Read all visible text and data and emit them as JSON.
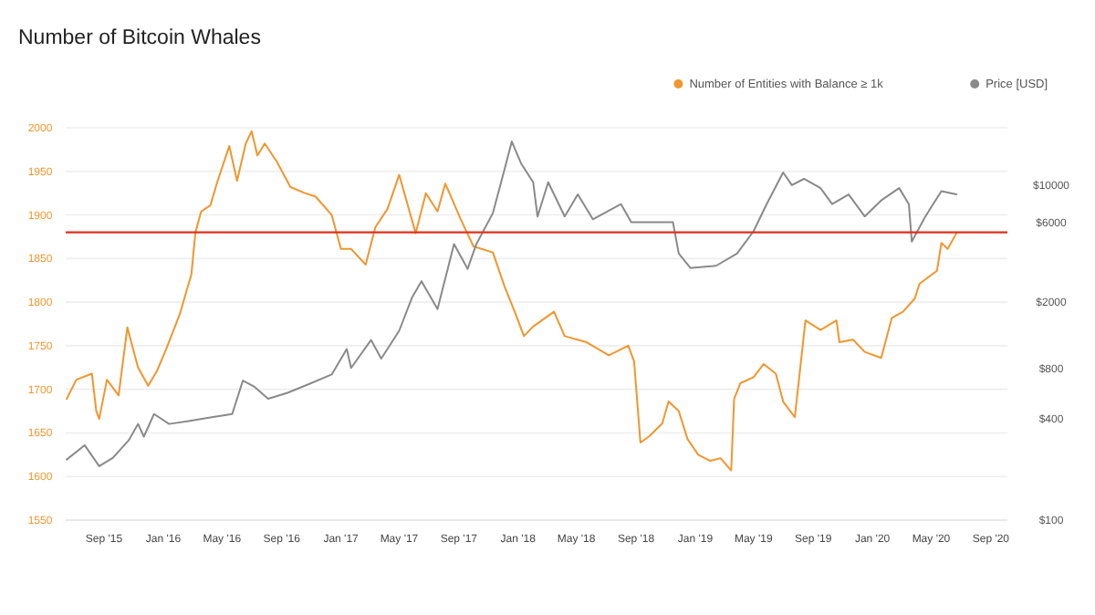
{
  "chart_data": {
    "type": "line",
    "title": "Number of Bitcoin Whales",
    "legend": "top right",
    "grid": "y",
    "log": "y2",
    "xlim": [
      "2015-06-14",
      "2020-10-05"
    ],
    "xticks": [
      {
        "value": "2015-09-01",
        "label": "Sep '15"
      },
      {
        "value": "2016-01-01",
        "label": "Jan '16"
      },
      {
        "value": "2016-05-01",
        "label": "May '16"
      },
      {
        "value": "2016-09-01",
        "label": "Sep '16"
      },
      {
        "value": "2017-01-01",
        "label": "Jan '17"
      },
      {
        "value": "2017-05-01",
        "label": "May '17"
      },
      {
        "value": "2017-09-01",
        "label": "Sep '17"
      },
      {
        "value": "2018-01-01",
        "label": "Jan '18"
      },
      {
        "value": "2018-05-01",
        "label": "May '18"
      },
      {
        "value": "2018-09-01",
        "label": "Sep '18"
      },
      {
        "value": "2019-01-01",
        "label": "Jan '19"
      },
      {
        "value": "2019-05-01",
        "label": "May '19"
      },
      {
        "value": "2019-09-01",
        "label": "Sep '19"
      },
      {
        "value": "2020-01-01",
        "label": "Jan '20"
      },
      {
        "value": "2020-05-01",
        "label": "May '20"
      },
      {
        "value": "2020-09-01",
        "label": "Sep '20"
      }
    ],
    "ylim": [
      1550,
      2000
    ],
    "yticks": [
      1550,
      1600,
      1650,
      1700,
      1750,
      1800,
      1850,
      1900,
      1950,
      2000
    ],
    "y2lim": [
      100,
      22000
    ],
    "y2ticks": [
      {
        "value": 100,
        "label": "$100"
      },
      {
        "value": 400,
        "label": "$400"
      },
      {
        "value": 800,
        "label": "$800"
      },
      {
        "value": 2000,
        "label": "$2000"
      },
      {
        "value": 6000,
        "label": "$6000"
      },
      {
        "value": 10000,
        "label": "$10000"
      }
    ],
    "ref_lines": [
      {
        "axis": "y",
        "value": 1880,
        "color": "#e0301e"
      }
    ],
    "series": [
      {
        "name": "Number of Entities with Balance ≥ 1k",
        "color": "#f0962e",
        "x": [
          "2015-06-16",
          "2015-07-06",
          "2015-08-07",
          "2015-08-16",
          "2015-08-22",
          "2015-09-07",
          "2015-10-01",
          "2015-10-19",
          "2015-11-10",
          "2015-12-01",
          "2015-12-19",
          "2016-01-07",
          "2016-02-04",
          "2016-02-28",
          "2016-03-07",
          "2016-03-19",
          "2016-04-07",
          "2016-04-22",
          "2016-05-16",
          "2016-06-01",
          "2016-06-19",
          "2016-07-01",
          "2016-07-13",
          "2016-07-28",
          "2016-08-22",
          "2016-09-19",
          "2016-10-19",
          "2016-11-10",
          "2016-12-13",
          "2017-01-01",
          "2017-01-22",
          "2017-02-21",
          "2017-03-13",
          "2017-04-07",
          "2017-05-01",
          "2017-06-04",
          "2017-06-25",
          "2017-07-19",
          "2017-08-04",
          "2017-09-04",
          "2017-10-01",
          "2017-11-10",
          "2017-12-04",
          "2017-12-25",
          "2018-01-13",
          "2018-02-01",
          "2018-03-16",
          "2018-04-07",
          "2018-05-22",
          "2018-07-07",
          "2018-08-16",
          "2018-08-28",
          "2018-09-10",
          "2018-09-28",
          "2018-10-25",
          "2018-11-07",
          "2018-11-28",
          "2018-12-16",
          "2019-01-07",
          "2019-02-01",
          "2019-02-22",
          "2019-03-16",
          "2019-03-22",
          "2019-04-04",
          "2019-05-01",
          "2019-05-22",
          "2019-06-16",
          "2019-07-01",
          "2019-07-25",
          "2019-08-04",
          "2019-08-16",
          "2019-09-16",
          "2019-10-19",
          "2019-10-25",
          "2019-11-22",
          "2019-12-16",
          "2020-01-19",
          "2020-02-10",
          "2020-03-04",
          "2020-03-28",
          "2020-04-07",
          "2020-05-13",
          "2020-05-22",
          "2020-06-04",
          "2020-06-22"
        ],
        "values": [
          1689,
          1711,
          1718,
          1675,
          1666,
          1711,
          1693,
          1771,
          1725,
          1704,
          1721,
          1746,
          1786,
          1832,
          1879,
          1904,
          1911,
          1939,
          1979,
          1939,
          1982,
          1996,
          1968,
          1982,
          1961,
          1932,
          1925,
          1921,
          1900,
          1861,
          1861,
          1843,
          1886,
          1907,
          1946,
          1879,
          1925,
          1904,
          1936,
          1896,
          1864,
          1857,
          1818,
          1789,
          1761,
          1772,
          1789,
          1761,
          1754,
          1739,
          1750,
          1732,
          1639,
          1646,
          1661,
          1686,
          1675,
          1643,
          1625,
          1618,
          1621,
          1607,
          1689,
          1707,
          1714,
          1729,
          1718,
          1686,
          1668,
          1718,
          1779,
          1768,
          1779,
          1754,
          1757,
          1743,
          1736,
          1782,
          1789,
          1804,
          1821,
          1836,
          1868,
          1861,
          1879
        ]
      },
      {
        "name": "Price [USD]",
        "color": "#8a8a8a",
        "axis": "y2",
        "x": [
          "2015-06-16",
          "2015-07-23",
          "2015-08-22",
          "2015-09-19",
          "2015-10-22",
          "2015-11-10",
          "2015-11-22",
          "2015-12-13",
          "2016-01-13",
          "2016-02-22",
          "2016-04-07",
          "2016-05-22",
          "2016-06-13",
          "2016-07-07",
          "2016-08-04",
          "2016-09-13",
          "2016-10-28",
          "2016-12-13",
          "2017-01-13",
          "2017-01-22",
          "2017-03-04",
          "2017-03-25",
          "2017-05-01",
          "2017-05-28",
          "2017-06-16",
          "2017-07-19",
          "2017-08-22",
          "2017-09-19",
          "2017-10-07",
          "2017-11-10",
          "2017-12-04",
          "2017-12-19",
          "2018-01-07",
          "2018-02-01",
          "2018-02-10",
          "2018-03-04",
          "2018-04-07",
          "2018-05-04",
          "2018-06-04",
          "2018-08-01",
          "2018-08-22",
          "2018-11-16",
          "2018-11-28",
          "2018-12-22",
          "2019-02-13",
          "2019-03-28",
          "2019-05-01",
          "2019-05-28",
          "2019-07-01",
          "2019-07-19",
          "2019-08-13",
          "2019-09-16",
          "2019-10-10",
          "2019-11-13",
          "2019-12-16",
          "2020-01-19",
          "2020-02-25",
          "2020-03-16",
          "2020-03-22",
          "2020-04-19",
          "2020-05-22",
          "2020-06-22"
        ],
        "values": [
          230,
          280,
          210,
          235,
          300,
          375,
          315,
          430,
          375,
          390,
          410,
          430,
          680,
          625,
          530,
          575,
          650,
          740,
          1050,
          810,
          1190,
          920,
          1350,
          2150,
          2670,
          1820,
          4450,
          3160,
          4450,
          6800,
          12400,
          18200,
          13500,
          10400,
          6500,
          10400,
          6500,
          8800,
          6250,
          7700,
          6000,
          6000,
          3900,
          3200,
          3300,
          3900,
          5300,
          7700,
          11900,
          10000,
          10900,
          9600,
          7700,
          8800,
          6500,
          8100,
          9600,
          7700,
          4600,
          6500,
          9200,
          8800
        ]
      }
    ]
  }
}
